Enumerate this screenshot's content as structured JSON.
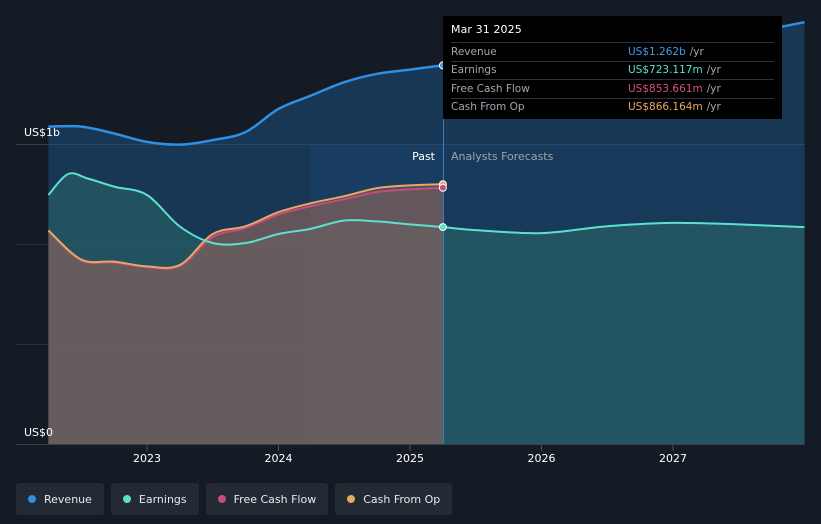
{
  "y_axis": {
    "top_label": "US$1b",
    "bottom_label": "US$0"
  },
  "section_labels": {
    "past": "Past",
    "forecast": "Analysts Forecasts"
  },
  "tooltip": {
    "date": "Mar 31 2025",
    "rows": [
      {
        "label": "Revenue",
        "value": "US$1.262b",
        "unit": "/yr",
        "color": "#3d9ef0"
      },
      {
        "label": "Earnings",
        "value": "US$723.117m",
        "unit": "/yr",
        "color": "#5ee0cf"
      },
      {
        "label": "Free Cash Flow",
        "value": "US$853.661m",
        "unit": "/yr",
        "color": "#d4527f"
      },
      {
        "label": "Cash From Op",
        "value": "US$866.164m",
        "unit": "/yr",
        "color": "#e8a765"
      }
    ]
  },
  "legend": [
    {
      "label": "Revenue",
      "color": "#2f8fe3"
    },
    {
      "label": "Earnings",
      "color": "#5ee0cf"
    },
    {
      "label": "Free Cash Flow",
      "color": "#c64c7a"
    },
    {
      "label": "Cash From Op",
      "color": "#e8a765"
    }
  ],
  "chart_data": {
    "type": "area",
    "x_ticks": [
      "2023",
      "2024",
      "2025",
      "2026",
      "2027"
    ],
    "ylim": [
      0,
      1.4
    ],
    "y_unit": "US$b",
    "grid": true,
    "past_cutoff": 2025.25,
    "series": [
      {
        "name": "Revenue",
        "color": "#2f8fe3",
        "points": [
          [
            2022.25,
            1.058
          ],
          [
            2022.5,
            1.058
          ],
          [
            2022.75,
            1.035
          ],
          [
            2023.0,
            1.007
          ],
          [
            2023.25,
            0.998
          ],
          [
            2023.5,
            1.013
          ],
          [
            2023.75,
            1.04
          ],
          [
            2024.0,
            1.117
          ],
          [
            2024.25,
            1.162
          ],
          [
            2024.5,
            1.206
          ],
          [
            2024.75,
            1.234
          ],
          [
            2025.0,
            1.248
          ],
          [
            2025.25,
            1.262
          ],
          [
            2025.5,
            1.275
          ],
          [
            2026.0,
            1.294
          ],
          [
            2026.5,
            1.311
          ],
          [
            2027.0,
            1.333
          ],
          [
            2027.5,
            1.364
          ],
          [
            2028.0,
            1.406
          ]
        ]
      },
      {
        "name": "Earnings",
        "color": "#5ee0cf",
        "points": [
          [
            2022.25,
            0.83
          ],
          [
            2022.4,
            0.9
          ],
          [
            2022.55,
            0.885
          ],
          [
            2022.75,
            0.858
          ],
          [
            2023.0,
            0.83
          ],
          [
            2023.25,
            0.725
          ],
          [
            2023.5,
            0.67
          ],
          [
            2023.75,
            0.67
          ],
          [
            2024.0,
            0.7
          ],
          [
            2024.25,
            0.718
          ],
          [
            2024.5,
            0.745
          ],
          [
            2024.75,
            0.742
          ],
          [
            2025.0,
            0.732
          ],
          [
            2025.25,
            0.723
          ],
          [
            2025.5,
            0.713
          ],
          [
            2026.0,
            0.703
          ],
          [
            2026.5,
            0.726
          ],
          [
            2027.0,
            0.737
          ],
          [
            2027.5,
            0.732
          ],
          [
            2028.0,
            0.723
          ]
        ]
      },
      {
        "name": "Free Cash Flow",
        "color": "#c64c7a",
        "points": [
          [
            2022.25,
            0.71
          ],
          [
            2022.5,
            0.612
          ],
          [
            2022.75,
            0.605
          ],
          [
            2023.0,
            0.59
          ],
          [
            2023.25,
            0.593
          ],
          [
            2023.5,
            0.69
          ],
          [
            2023.75,
            0.72
          ],
          [
            2024.0,
            0.765
          ],
          [
            2024.25,
            0.793
          ],
          [
            2024.5,
            0.816
          ],
          [
            2024.75,
            0.84
          ],
          [
            2025.0,
            0.849
          ],
          [
            2025.25,
            0.854
          ]
        ]
      },
      {
        "name": "Cash From Op",
        "color": "#e8a765",
        "points": [
          [
            2022.25,
            0.712
          ],
          [
            2022.5,
            0.615
          ],
          [
            2022.75,
            0.608
          ],
          [
            2023.0,
            0.592
          ],
          [
            2023.25,
            0.597
          ],
          [
            2023.5,
            0.7
          ],
          [
            2023.75,
            0.726
          ],
          [
            2024.0,
            0.773
          ],
          [
            2024.25,
            0.803
          ],
          [
            2024.5,
            0.826
          ],
          [
            2024.75,
            0.853
          ],
          [
            2025.0,
            0.862
          ],
          [
            2025.25,
            0.866
          ]
        ]
      }
    ]
  }
}
